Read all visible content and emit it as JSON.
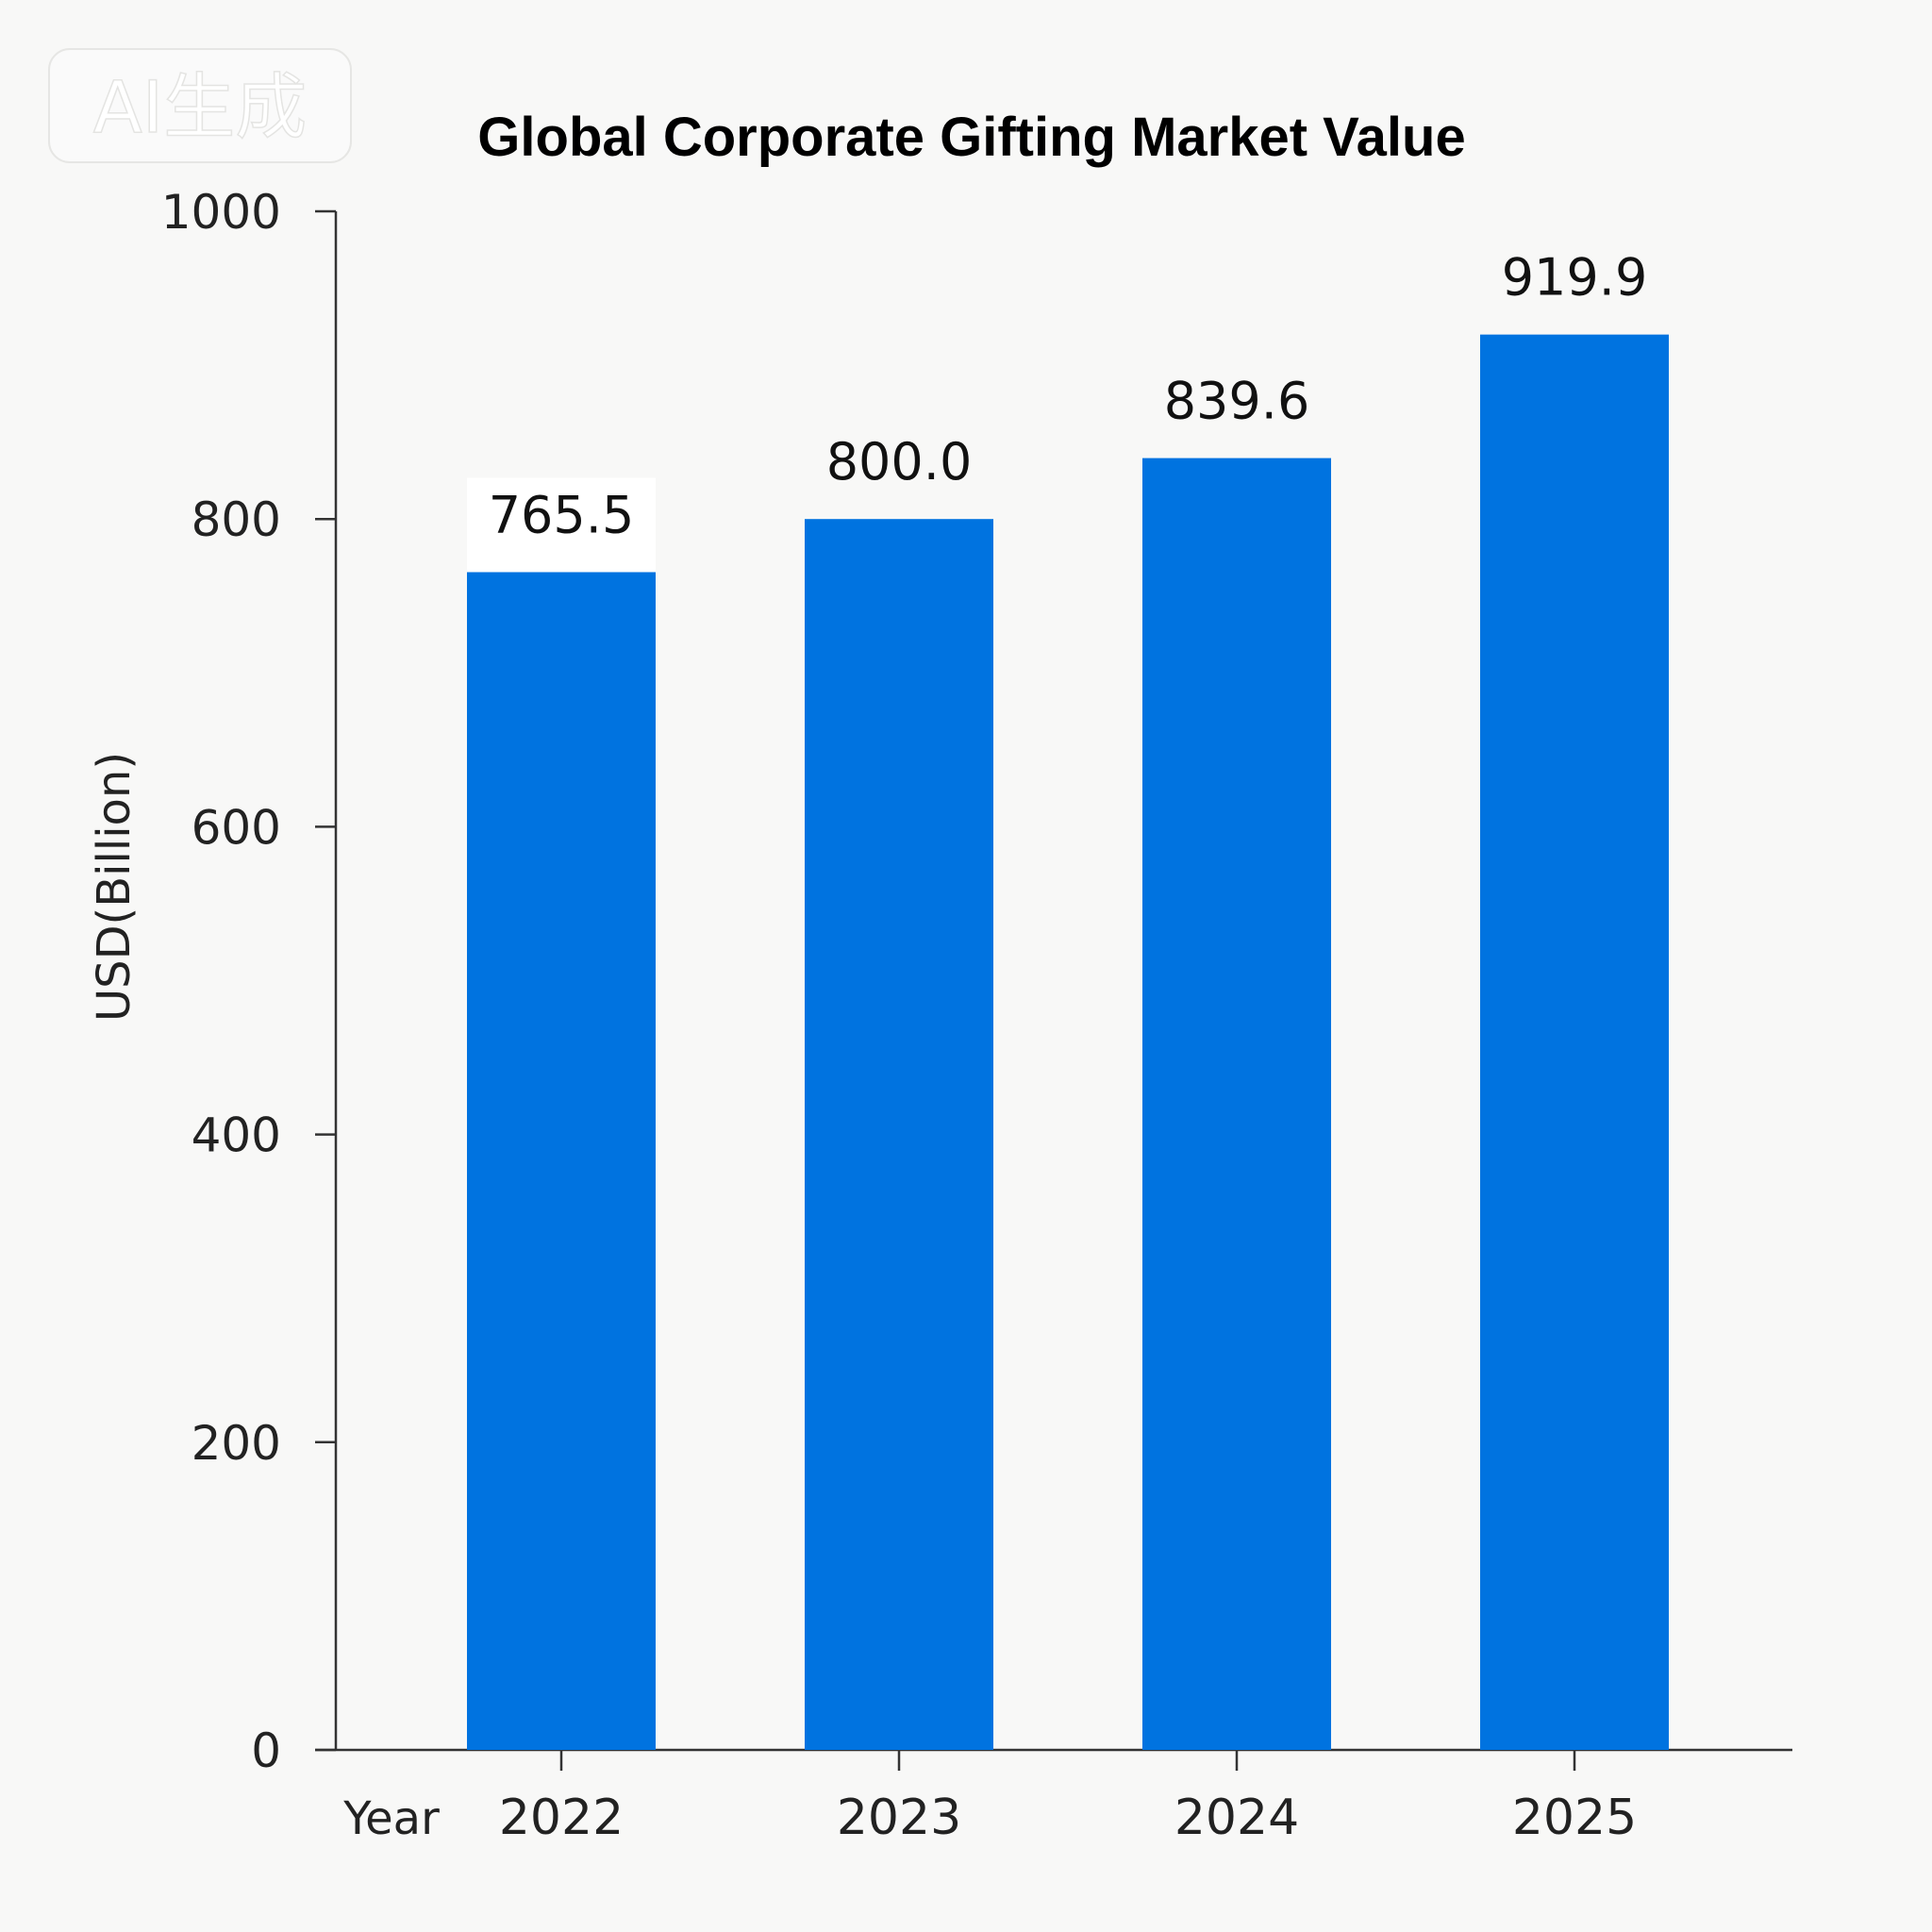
{
  "watermark": "AI生成",
  "chart_data": {
    "type": "bar",
    "title": "Global Corporate Gifting Market Value",
    "xlabel": "Year",
    "ylabel": "USD(Billion)",
    "categories": [
      "2022",
      "2023",
      "2024",
      "2025"
    ],
    "values": [
      765.5,
      800.0,
      839.6,
      919.9
    ],
    "value_labels": [
      "765.5",
      "800.0",
      "839.6",
      "919.9"
    ],
    "yticks": [
      "0",
      "200",
      "400",
      "600",
      "800",
      "1000"
    ],
    "ylim": [
      0,
      1000
    ],
    "bar_color": "#0073e0",
    "grid": false,
    "legend": "none"
  }
}
